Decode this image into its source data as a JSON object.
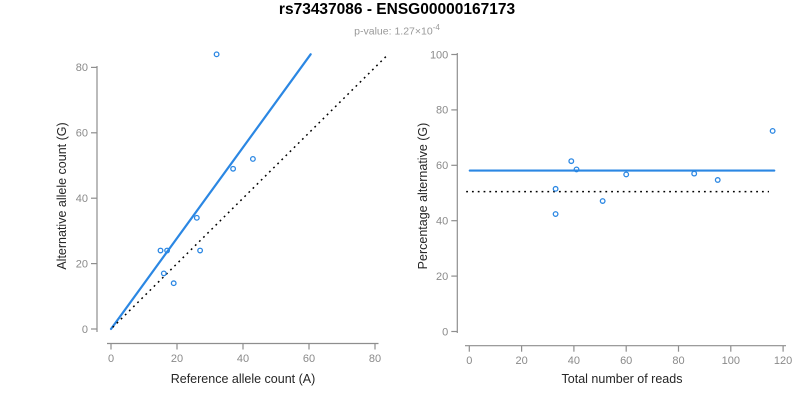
{
  "title": "rs73437086 - ENSG00000167173",
  "subtitle": {
    "prefix": "p-value: 1.27×10",
    "exponent": "-4"
  },
  "colors": {
    "accent_blue": "#2b87e3",
    "dotted_black": "#000000",
    "axis_line_gray": "#8e8e8e",
    "tick_label_gray": "#8a8a8a",
    "axis_title_color": "#262626",
    "subtitle_gray": "#999999",
    "background": "#ffffff"
  },
  "chart_data": [
    {
      "type": "scatter",
      "panel": "left",
      "xlabel": "Reference allele count (A)",
      "ylabel": "Alternative allele count (G)",
      "xlim": [
        0,
        80
      ],
      "ylim": [
        0,
        80
      ],
      "xticks": [
        0,
        20,
        40,
        60,
        80
      ],
      "yticks": [
        0,
        20,
        40,
        60,
        80
      ],
      "grid": false,
      "legend": "none",
      "marker": "open-circle",
      "points": [
        [
          15,
          24
        ],
        [
          16,
          17
        ],
        [
          17,
          24
        ],
        [
          19,
          14
        ],
        [
          26,
          34
        ],
        [
          27,
          24
        ],
        [
          32,
          84
        ],
        [
          37,
          49
        ],
        [
          43,
          52
        ]
      ],
      "lines": [
        {
          "label": "regression-line",
          "style": "solid",
          "color_key": "accent_blue",
          "x1": 0,
          "y1": 0,
          "x2": 60.5,
          "y2": 84
        },
        {
          "label": "identity-line",
          "style": "dotted",
          "color_key": "dotted_black",
          "x1": 0.5,
          "y1": 0.5,
          "x2": 83.5,
          "y2": 83.5
        }
      ]
    },
    {
      "type": "scatter",
      "panel": "right",
      "xlabel": "Total number of reads",
      "ylabel": "Percentage alternative (G)",
      "xlim": [
        0,
        120
      ],
      "ylim": [
        0,
        100
      ],
      "xticks": [
        0,
        20,
        40,
        60,
        80,
        100,
        120
      ],
      "yticks": [
        0,
        20,
        40,
        60,
        80,
        100
      ],
      "grid": false,
      "legend": "none",
      "marker": "open-circle",
      "points": [
        [
          33,
          42.4
        ],
        [
          33,
          51.5
        ],
        [
          39,
          61.5
        ],
        [
          41,
          58.5
        ],
        [
          51,
          47.1
        ],
        [
          60,
          56.7
        ],
        [
          86,
          57.0
        ],
        [
          95,
          54.7
        ],
        [
          116,
          72.4
        ]
      ],
      "lines": [
        {
          "label": "mean-percentage-line",
          "style": "solid",
          "color_key": "accent_blue",
          "x1": 0.2,
          "y1": 58.1,
          "x2": 116.6,
          "y2": 58.1
        },
        {
          "label": "null-50pct-line",
          "style": "dotted",
          "color_key": "dotted_black",
          "x1": -1.2,
          "y1": 50.5,
          "x2": 114.6,
          "y2": 50.5
        }
      ]
    }
  ]
}
